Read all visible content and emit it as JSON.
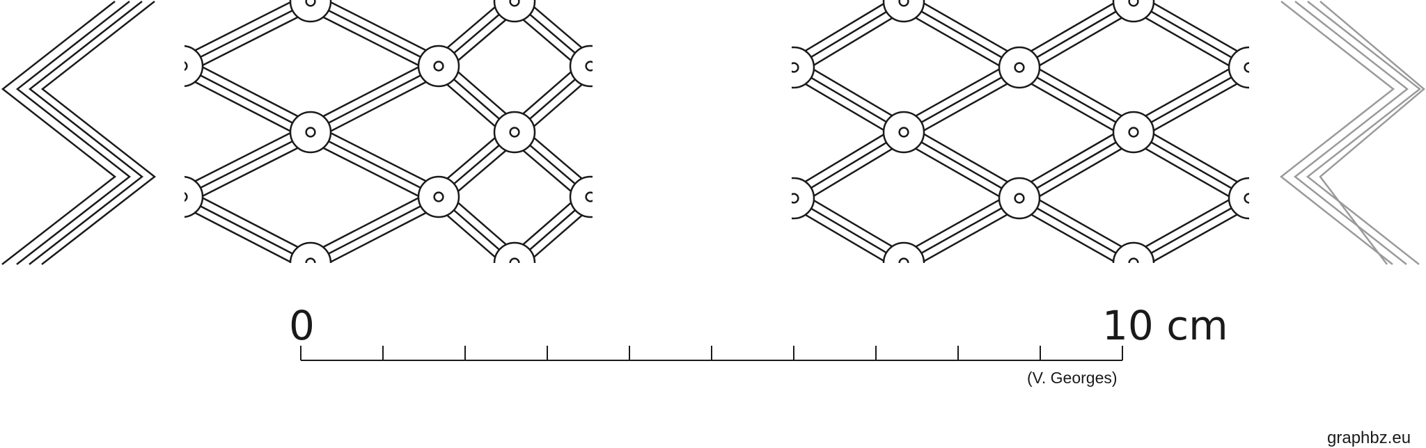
{
  "scale_bar": {
    "start_label": "0",
    "end_label": "10 cm",
    "tick_count": 10,
    "author": "(V. Georges)"
  },
  "site_credit": "graphbz.eu",
  "colors": {
    "ink": "#1a1a1a",
    "faded_ink": "#9a9a9a",
    "background": "#ffffff"
  }
}
